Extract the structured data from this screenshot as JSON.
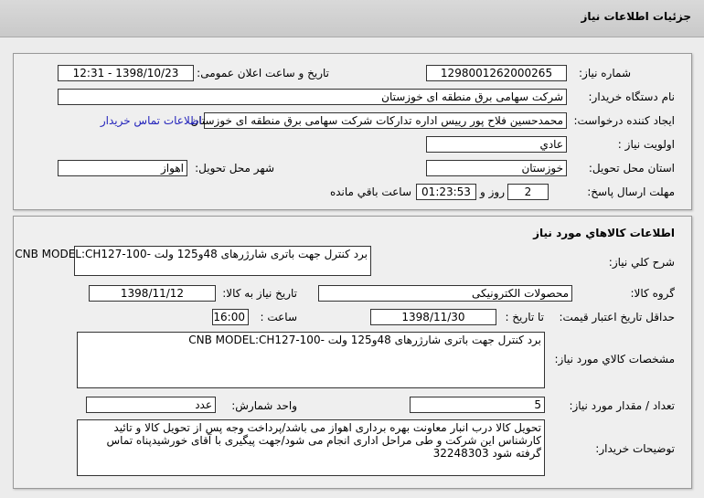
{
  "header": {
    "title": "جزئیات اطلاعات نیاز"
  },
  "info": {
    "need_number_label": "شماره نیاز:",
    "need_number": "1298001262000265",
    "announce_label": "تاریخ و ساعت اعلان عمومی:",
    "announce_value": "1398/10/23 - 12:31",
    "buyer_label": "نام دستگاه خریدار:",
    "buyer": "شرکت سهامی برق منطقه ای خوزستان",
    "requester_label": "ایجاد کننده درخواست:",
    "requester": "محمدحسین فلاح پور رییس اداره تدارکات شرکت سهامی برق منطقه ای خوزستان",
    "contact_link": "اطلاعات تماس خریدار",
    "priority_label": "اولویت نیاز :",
    "priority": "عادي",
    "province_label": "استان محل تحویل:",
    "province": "خوزستان",
    "city_label": "شهر محل تحویل:",
    "city": "اهواز",
    "deadline_label": "مهلت ارسال پاسخ:",
    "days": "2",
    "days_suffix": "روز و",
    "time_left": "01:23:53",
    "time_suffix": "ساعت باقي مانده"
  },
  "goods": {
    "title": "اطلاعات كالاهاي مورد نياز",
    "summary_label": "شرح کلي نياز:",
    "summary": "برد کنترل جهت باتری شارژرهای 48و125 ولت -100-CNB  MODEL:CH127",
    "group_label": "گروه کالا:",
    "group": "محصولات الکترونیکی",
    "need_date_label": "تاریخ نیاز به کالا:",
    "need_date": "1398/11/12",
    "validity_label": "حداقل تاریخ اعتبار قیمت:",
    "until_label": "تا تاریخ :",
    "validity_date": "1398/11/30",
    "hour_label": "ساعت :",
    "validity_time": "16:00",
    "specs_label": "مشخصات كالاي مورد نياز:",
    "specs": "برد کنترل جهت باتری شارژرهای 48و125 ولت -100-CNB  MODEL:CH127",
    "qty_label": "تعداد / مقدار مورد نیاز:",
    "qty": "5",
    "unit_label": "واحد شمارش:",
    "unit": "عدد",
    "notes_label": "توضیحات خریدار:",
    "notes": "تحویل کالا درب انبار معاونت بهره برداری اهواز می باشد/پرداخت وجه پس از تحویل کالا و تائید کارشناس این شرکت و طی مراحل اداری انجام می شود/جهت پیگیری با آقای خورشیدپناه تماس گرفته شود 32248303"
  }
}
